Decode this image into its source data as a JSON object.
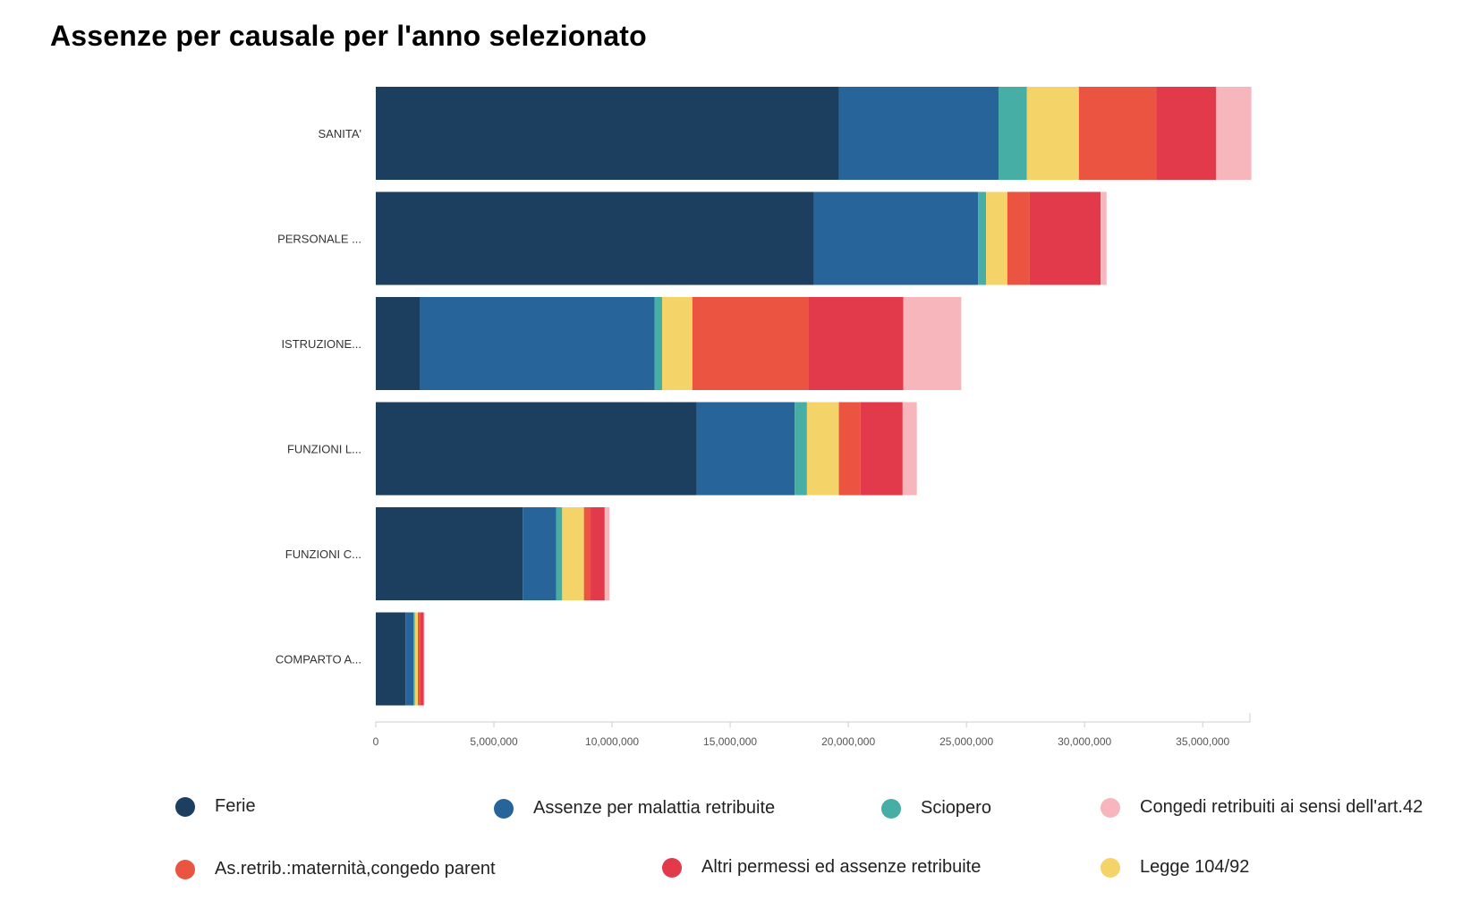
{
  "title": "Assenze per causale per l'anno selezionato",
  "legend": [
    {
      "label": "Ferie",
      "color": "#1c3f60"
    },
    {
      "label": "Assenze per malattia retribuite",
      "color": "#27649a"
    },
    {
      "label": "Sciopero",
      "color": "#46aea4"
    },
    {
      "label": "Congedi retribuiti ai sensi dell'art.42",
      "color": "#f7b6bc"
    },
    {
      "label": "As.retrib.:maternità,congedo parent",
      "color": "#eb5441"
    },
    {
      "label": "Altri permessi ed assenze retribuite",
      "color": "#e23a4b"
    },
    {
      "label": "Legge 104/92",
      "color": "#f4d468"
    }
  ],
  "chart_data": {
    "type": "bar",
    "orientation": "horizontal",
    "stacked": true,
    "title": "Assenze per causale per l'anno selezionato",
    "categories": [
      "SANITA'",
      "PERSONALE ...",
      "ISTRUZIONE...",
      "FUNZIONI L...",
      "FUNZIONI C...",
      "COMPARTO A..."
    ],
    "series": [
      {
        "name": "Ferie",
        "color": "#1c3f60",
        "values": [
          19600000,
          18550000,
          1880000,
          13580000,
          6220000,
          1260000
        ]
      },
      {
        "name": "Assenze per malattia retribuite",
        "color": "#27649a",
        "values": [
          6760000,
          6940000,
          9920000,
          4150000,
          1420000,
          340000
        ]
      },
      {
        "name": "Sciopero",
        "color": "#46aea4",
        "values": [
          1200000,
          340000,
          320000,
          520000,
          250000,
          60000
        ]
      },
      {
        "name": "Legge 104/92",
        "color": "#f4d468",
        "values": [
          2200000,
          900000,
          1280000,
          1350000,
          920000,
          120000
        ]
      },
      {
        "name": "As.retrib.:maternità,congedo parent",
        "color": "#eb5441",
        "values": [
          3280000,
          950000,
          4930000,
          920000,
          280000,
          100000
        ]
      },
      {
        "name": "Altri permessi ed assenze retribuite",
        "color": "#e23a4b",
        "values": [
          2520000,
          3000000,
          4000000,
          1780000,
          600000,
          150000
        ]
      },
      {
        "name": "Congedi retribuiti ai sensi dell'art.42",
        "color": "#f7b6bc",
        "values": [
          1500000,
          250000,
          2450000,
          600000,
          200000,
          30000
        ]
      }
    ],
    "xlim": [
      0,
      37000000
    ],
    "ticks": [
      0,
      5000000,
      10000000,
      15000000,
      20000000,
      25000000,
      30000000,
      35000000
    ],
    "tick_labels": [
      "0",
      "5,000,000",
      "10,000,000",
      "15,000,000",
      "20,000,000",
      "25,000,000",
      "30,000,000",
      "35,000,000"
    ],
    "grid": false,
    "legend_position": "bottom"
  }
}
